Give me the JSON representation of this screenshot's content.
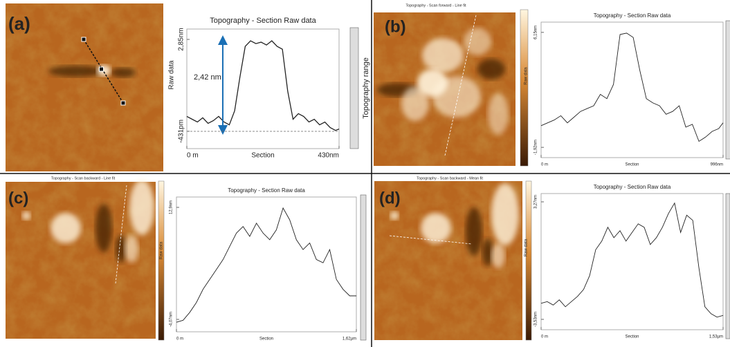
{
  "chart_data": [
    {
      "type": "line",
      "label": "(a)",
      "title": "Topography - Section   Raw data",
      "y_label": "Raw data",
      "x_label": "Section",
      "side_label": "Topography range",
      "annotation": "2,42 nm",
      "x": [
        0,
        15,
        30,
        45,
        60,
        75,
        90,
        105,
        120,
        135,
        150,
        165,
        180,
        195,
        210,
        225,
        240,
        255,
        270,
        285,
        300,
        315,
        330,
        345,
        360,
        375,
        390,
        405,
        420,
        430
      ],
      "values": [
        0.1,
        0.0,
        -0.1,
        0.05,
        -0.15,
        -0.05,
        0.1,
        -0.1,
        -0.2,
        0.3,
        1.5,
        2.6,
        2.8,
        2.7,
        2.75,
        2.65,
        2.8,
        2.6,
        2.5,
        1.0,
        0.0,
        0.2,
        0.1,
        -0.1,
        0.0,
        -0.2,
        -0.1,
        -0.3,
        -0.4,
        -0.35
      ],
      "xlim": [
        0,
        430
      ],
      "xticks": [
        {
          "value": 0,
          "label": "0 m"
        },
        {
          "value": 430,
          "label": "430nm"
        }
      ],
      "ylim": [
        -1.05,
        3.22
      ],
      "yticks": [
        {
          "value": -0.431,
          "label": "-431pm"
        },
        {
          "value": 2.85,
          "label": "2,85nm"
        }
      ]
    },
    {
      "type": "line",
      "label": "(b)",
      "image_title": "Topography - Scan forward - Line fit",
      "title": "Topography - Section   Raw data",
      "y_label": "Raw data",
      "x_label": "Section",
      "x": [
        0,
        36,
        72,
        108,
        144,
        180,
        216,
        252,
        288,
        324,
        360,
        396,
        432,
        468,
        504,
        540,
        576,
        612,
        648,
        684,
        720,
        756,
        792,
        828,
        864,
        900,
        936,
        972,
        996
      ],
      "values": [
        -0.4,
        -0.2,
        0.0,
        0.3,
        -0.2,
        0.2,
        0.6,
        0.8,
        1.0,
        1.8,
        1.5,
        2.5,
        6.0,
        6.1,
        5.8,
        3.5,
        1.5,
        1.2,
        1.0,
        0.4,
        0.6,
        1.0,
        -0.5,
        -0.3,
        -1.5,
        -1.2,
        -0.8,
        -0.6,
        -0.2
      ],
      "xlim": [
        0,
        996
      ],
      "xticks": [
        {
          "value": 0,
          "label": "0 m"
        },
        {
          "value": 996,
          "label": "996nm"
        }
      ],
      "ylim": [
        -2.64,
        6.87
      ],
      "yticks": [
        {
          "value": -1.92,
          "label": "-1,92nm"
        },
        {
          "value": 6.15,
          "label": "6,15nm"
        }
      ]
    },
    {
      "type": "line",
      "label": "(c)",
      "image_title": "Topography - Scan backward - Line fit",
      "title": "Topography - Section   Raw data",
      "y_label": "Raw data",
      "x_label": "Section",
      "x": [
        0,
        0.06,
        0.12,
        0.18,
        0.24,
        0.3,
        0.36,
        0.42,
        0.48,
        0.54,
        0.6,
        0.66,
        0.72,
        0.78,
        0.84,
        0.9,
        0.96,
        1.02,
        1.08,
        1.14,
        1.2,
        1.26,
        1.32,
        1.38,
        1.44,
        1.5,
        1.56,
        1.62
      ],
      "values": [
        -4.5,
        -4.2,
        -3.0,
        -1.5,
        0.5,
        2.0,
        3.5,
        5.0,
        7.0,
        9.0,
        10.0,
        8.5,
        10.5,
        9.0,
        8.0,
        9.5,
        12.8,
        11.0,
        8.0,
        6.5,
        7.5,
        5.0,
        4.5,
        6.5,
        2.0,
        0.5,
        -0.5,
        -0.5
      ],
      "xlim": [
        0,
        1.62
      ],
      "xticks": [
        {
          "value": 0,
          "label": "0 m"
        },
        {
          "value": 1.62,
          "label": "1,62µm"
        }
      ],
      "ylim": [
        -5.95,
        14.47
      ],
      "yticks": [
        {
          "value": -4.07,
          "label": "-4,07nm"
        },
        {
          "value": 12.9,
          "label": "12,9nm"
        }
      ]
    },
    {
      "type": "line",
      "label": "(d)",
      "image_title": "Topography - Scan backward - Mean fit",
      "title": "Topography - Section   Raw data",
      "y_label": "Raw data",
      "x_label": "Section",
      "x": [
        0,
        0.051,
        0.102,
        0.153,
        0.204,
        0.255,
        0.306,
        0.357,
        0.408,
        0.459,
        0.51,
        0.561,
        0.612,
        0.663,
        0.714,
        0.765,
        0.816,
        0.867,
        0.918,
        0.969,
        1.02,
        1.071,
        1.122,
        1.173,
        1.224,
        1.275,
        1.326,
        1.377,
        1.428,
        1.479,
        1.53
      ],
      "values": [
        -2.6,
        -2.5,
        -2.7,
        -2.4,
        -2.8,
        -2.5,
        -2.2,
        -1.8,
        -1.0,
        0.5,
        1.0,
        1.8,
        1.2,
        1.6,
        1.0,
        1.5,
        2.0,
        1.8,
        0.8,
        1.2,
        1.8,
        2.6,
        3.2,
        1.5,
        2.5,
        2.2,
        -0.5,
        -2.8,
        -3.2,
        -3.4,
        -3.3
      ],
      "xlim": [
        0,
        1.53
      ],
      "xticks": [
        {
          "value": 0,
          "label": "0 m"
        },
        {
          "value": 1.53,
          "label": "1,53µm"
        }
      ],
      "ylim": [
        -4.13,
        3.75
      ],
      "yticks": [
        {
          "value": -3.53,
          "label": "-3,53nm"
        },
        {
          "value": 3.27,
          "label": "3,27nm"
        }
      ]
    }
  ]
}
